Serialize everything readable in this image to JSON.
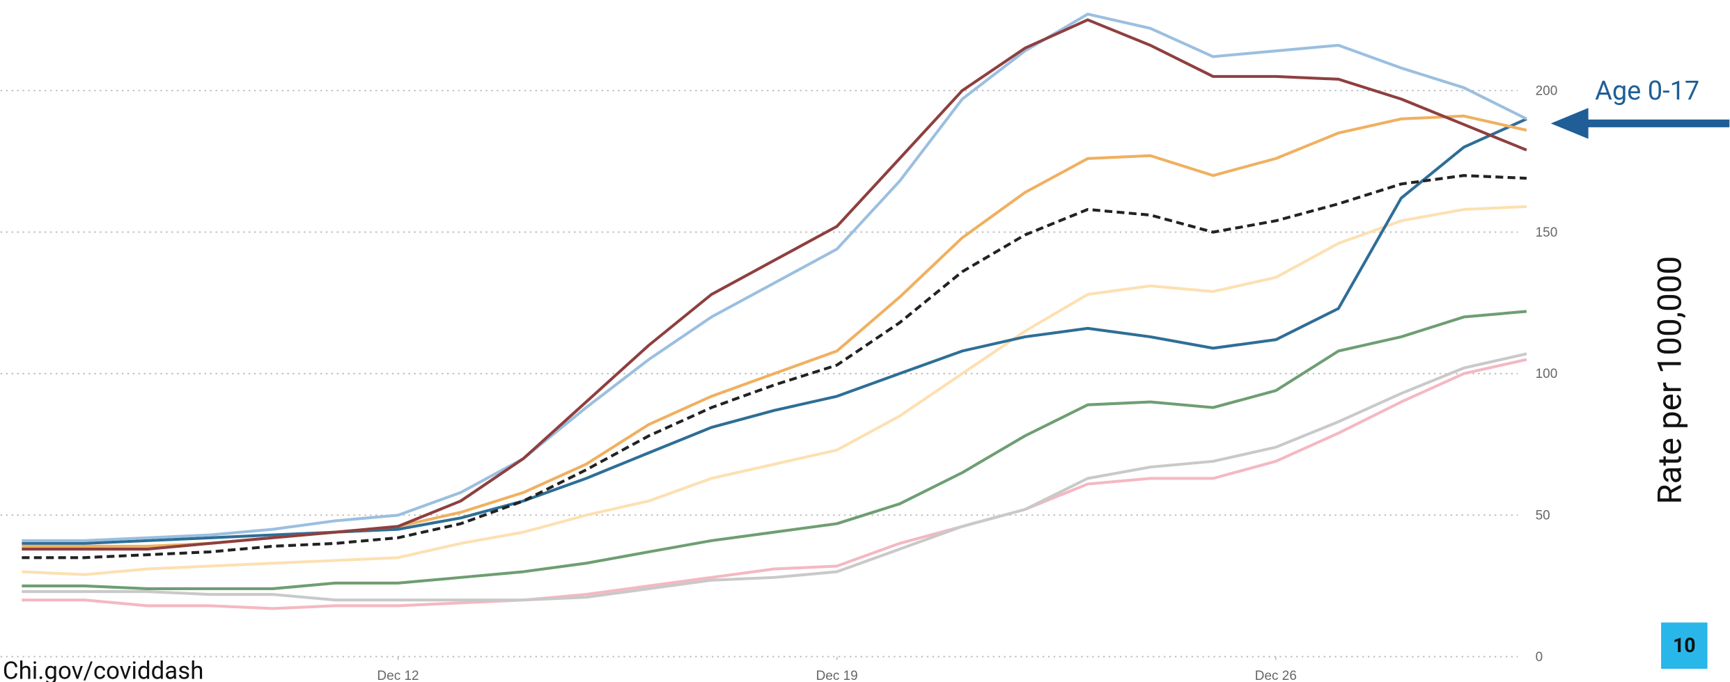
{
  "chart_data": {
    "type": "line",
    "source": "Chi.gov/coviddash",
    "y_label": "Rate per 100,000",
    "annotation": "Age 0-17",
    "page_number": "10",
    "x": [
      6,
      7,
      8,
      9,
      10,
      11,
      12,
      13,
      14,
      15,
      16,
      17,
      18,
      19,
      20,
      21,
      22,
      23,
      24,
      25,
      26,
      27,
      28,
      29,
      30
    ],
    "xlim": [
      5.66,
      30
    ],
    "xticks": [
      {
        "value": 12,
        "label": "Dec 12"
      },
      {
        "value": 19,
        "label": "Dec 19"
      },
      {
        "value": 26,
        "label": "Dec 26"
      }
    ],
    "ylim": [
      0,
      232
    ],
    "yticks": [
      0,
      50,
      100,
      150,
      200
    ],
    "grid": true,
    "series": [
      {
        "color": "#f4b8c2",
        "dashed": false,
        "values": [
          20,
          20,
          18,
          18,
          17,
          18,
          18,
          19,
          20,
          22,
          25,
          28,
          31,
          32,
          40,
          46,
          52,
          61,
          63,
          63,
          69,
          79,
          90,
          100,
          105
        ]
      },
      {
        "color": "#c9c9c9",
        "dashed": false,
        "values": [
          23,
          23,
          23,
          22,
          22,
          20,
          20,
          20,
          20,
          21,
          24,
          27,
          28,
          30,
          38,
          46,
          52,
          63,
          67,
          69,
          74,
          83,
          93,
          102,
          107
        ]
      },
      {
        "color": "#6e9e72",
        "dashed": false,
        "values": [
          25,
          25,
          24,
          24,
          24,
          26,
          26,
          28,
          30,
          33,
          37,
          41,
          44,
          47,
          54,
          65,
          78,
          89,
          90,
          88,
          94,
          108,
          113,
          120,
          122
        ]
      },
      {
        "color": "#fde0b2",
        "dashed": false,
        "values": [
          30,
          29,
          31,
          32,
          33,
          34,
          35,
          40,
          44,
          50,
          55,
          63,
          68,
          73,
          85,
          100,
          115,
          128,
          131,
          129,
          134,
          146,
          154,
          158,
          159
        ]
      },
      {
        "color": "#2e6e96",
        "dashed": false,
        "values": [
          40,
          40,
          41,
          42,
          43,
          44,
          45,
          49,
          55,
          63,
          72,
          81,
          87,
          92,
          100,
          108,
          113,
          116,
          113,
          109,
          112,
          123,
          162,
          180,
          190
        ]
      },
      {
        "color": "#222222",
        "dashed": true,
        "values": [
          35,
          35,
          36,
          37,
          39,
          40,
          42,
          47,
          55,
          66,
          78,
          88,
          96,
          103,
          118,
          136,
          149,
          158,
          156,
          150,
          154,
          160,
          167,
          170,
          169
        ]
      },
      {
        "color": "#f0b060",
        "dashed": false,
        "values": [
          39,
          39,
          39,
          40,
          42,
          44,
          46,
          51,
          58,
          68,
          82,
          92,
          100,
          108,
          127,
          148,
          164,
          176,
          177,
          170,
          176,
          185,
          190,
          191,
          186
        ]
      },
      {
        "color": "#9bbfdf",
        "dashed": false,
        "values": [
          41,
          41,
          42,
          43,
          45,
          48,
          50,
          58,
          70,
          88,
          105,
          120,
          132,
          144,
          168,
          197,
          214,
          227,
          222,
          212,
          214,
          216,
          208,
          201,
          190
        ]
      },
      {
        "color": "#8e3f3f",
        "dashed": false,
        "values": [
          38,
          38,
          38,
          40,
          42,
          44,
          46,
          55,
          70,
          90,
          110,
          128,
          140,
          152,
          176,
          200,
          215,
          225,
          216,
          205,
          205,
          204,
          197,
          188,
          179
        ]
      }
    ]
  }
}
